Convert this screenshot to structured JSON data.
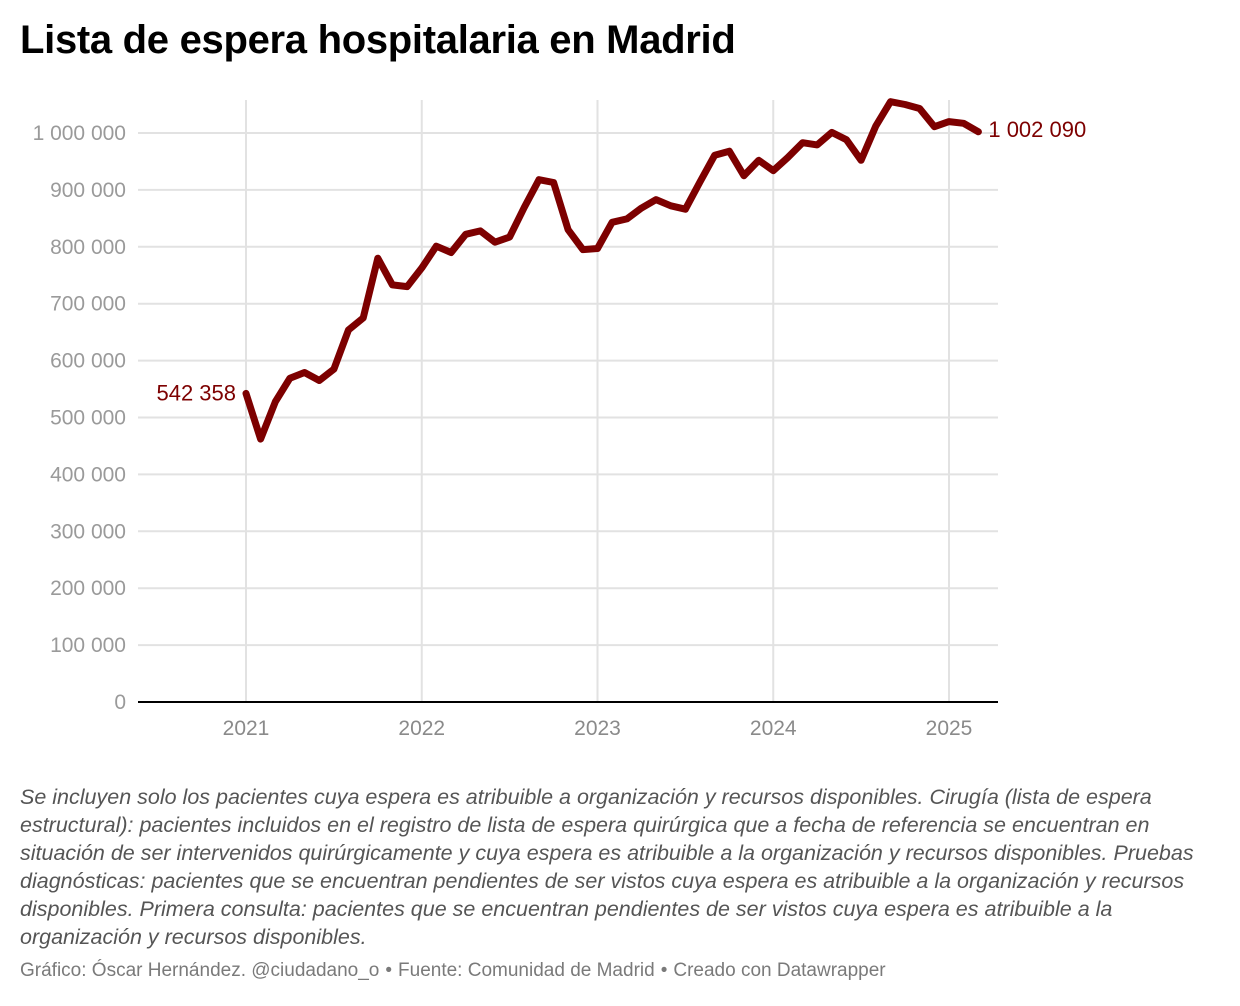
{
  "title": "Lista de espera hospitalaria en Madrid",
  "notes": "Se incluyen solo los pacientes cuya espera es atribuible a organización y recursos disponibles. Cirugía (lista de espera estructural): pacientes incluidos en el registro de lista de espera quirúrgica que a fecha de referencia se encuentran en situación de ser intervenidos quirúrgicamente y cuya espera es atribuible a la organización y recursos disponibles. Pruebas diagnósticas: pacientes que se encuentran pendientes de ser vistos cuya espera es atribuible a la organización y recursos disponibles. Primera consulta: pacientes que se encuentran pendientes de ser vistos cuya espera es atribuible a la organización y recursos disponibles.",
  "footer": {
    "author": "Gráfico: Óscar Hernández. @ciudadano_o",
    "source": "Fuente: Comunidad de Madrid",
    "tool": "Creado con Datawrapper"
  },
  "chart_data": {
    "type": "line",
    "title": "Lista de espera hospitalaria en Madrid",
    "xlabel": "",
    "ylabel": "",
    "ylim": [
      0,
      1000000
    ],
    "yticks": [
      0,
      100000,
      200000,
      300000,
      400000,
      500000,
      600000,
      700000,
      800000,
      900000,
      1000000
    ],
    "ytick_labels": [
      "0",
      "100 000",
      "200 000",
      "300 000",
      "400 000",
      "500 000",
      "600 000",
      "700 000",
      "800 000",
      "900 000",
      "1 000 000"
    ],
    "xticks": [
      2021,
      2022,
      2023,
      2024,
      2025
    ],
    "xtick_labels": [
      "2021",
      "2022",
      "2023",
      "2024",
      "2025"
    ],
    "xlim": [
      2020.42,
      2025.3
    ],
    "grid": true,
    "line_color": "#7d0000",
    "series": [
      {
        "x": [
          2021.0,
          2021.083,
          2021.167,
          2021.25,
          2021.333,
          2021.417,
          2021.5,
          2021.583,
          2021.667,
          2021.75,
          2021.833,
          2021.917,
          2022.0,
          2022.083,
          2022.167,
          2022.25,
          2022.333,
          2022.417,
          2022.5,
          2022.583,
          2022.667,
          2022.75,
          2022.833,
          2022.917,
          2023.0,
          2023.083,
          2023.167,
          2023.25,
          2023.333,
          2023.417,
          2023.5,
          2023.583,
          2023.667,
          2023.75,
          2023.833,
          2023.917,
          2024.0,
          2024.083,
          2024.167,
          2024.25,
          2024.333,
          2024.417,
          2024.5,
          2024.583,
          2024.667,
          2024.75,
          2024.833,
          2024.917,
          2025.0,
          2025.083,
          2025.167
        ],
        "y": [
          542358,
          462000,
          528000,
          569000,
          579000,
          565000,
          585000,
          654000,
          675000,
          780000,
          733000,
          730000,
          763000,
          801000,
          790000,
          822000,
          828000,
          808000,
          817000,
          869000,
          918000,
          913000,
          830000,
          795000,
          797000,
          843000,
          849000,
          868000,
          883000,
          872000,
          866000,
          914000,
          961000,
          968000,
          925000,
          952000,
          934000,
          957000,
          983000,
          979000,
          1001000,
          988000,
          952000,
          1012000,
          1055000,
          1050000,
          1043000,
          1011000,
          1020000,
          1017000,
          1002090
        ]
      }
    ],
    "annotations": [
      {
        "text": "542 358",
        "x": 2021.0,
        "y": 542358,
        "side": "left"
      },
      {
        "text": "1 002 090",
        "x": 2025.167,
        "y": 1002090,
        "side": "right"
      }
    ]
  }
}
